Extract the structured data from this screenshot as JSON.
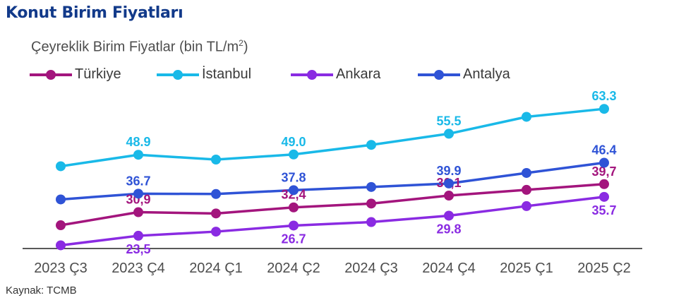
{
  "page": {
    "title": "Konut Birim Fiyatları",
    "subtitle": "Çeyreklik Birim Fiyatlar (bin TL/m",
    "subtitle_sup": "2",
    "subtitle_end": ")",
    "source": "Kaynak: TCMB"
  },
  "chart_data": {
    "type": "line",
    "title": "Konut Birim Fiyatları",
    "subtitle": "Çeyreklik Birim Fiyatlar (bin TL/m2)",
    "ylabel": "bin TL/m2",
    "xlabel": "",
    "ylim": [
      19.5,
      66
    ],
    "grid": false,
    "legend": "top-left",
    "categories": [
      "2023 Ç3",
      "2023 Ç4",
      "2024 Ç1",
      "2024 Ç2",
      "2024 Ç3",
      "2024 Ç4",
      "2025 Ç1",
      "2025 Ç2"
    ],
    "series": [
      {
        "name": "Türkiye",
        "color": "#a3157d",
        "values": [
          26.8,
          30.9,
          30.5,
          32.4,
          33.6,
          36.1,
          37.9,
          39.7
        ],
        "labels": [
          null,
          "30,9",
          null,
          "32,4",
          null,
          "36,1",
          null,
          "39,7"
        ],
        "label_pos": "above"
      },
      {
        "name": "İstanbul",
        "color": "#19b9e8",
        "values": [
          45.3,
          48.9,
          47.4,
          49.0,
          52.0,
          55.5,
          60.8,
          63.3
        ],
        "labels": [
          null,
          "48.9",
          null,
          "49.0",
          null,
          "55.5",
          null,
          "63.3"
        ],
        "label_pos": "above"
      },
      {
        "name": "Ankara",
        "color": "#8a2be2",
        "values": [
          20.5,
          23.5,
          24.8,
          26.7,
          27.8,
          29.8,
          32.8,
          35.7
        ],
        "labels": [
          null,
          "23,5",
          null,
          "26.7",
          null,
          "29.8",
          null,
          "35.7"
        ],
        "label_pos": "below"
      },
      {
        "name": "Antalya",
        "color": "#2f53d6",
        "values": [
          34.9,
          36.7,
          36.6,
          37.8,
          38.8,
          39.9,
          43.2,
          46.4
        ],
        "labels": [
          null,
          "36.7",
          null,
          "37.8",
          null,
          "39.9",
          null,
          "46.4"
        ],
        "label_pos": "above"
      }
    ]
  }
}
